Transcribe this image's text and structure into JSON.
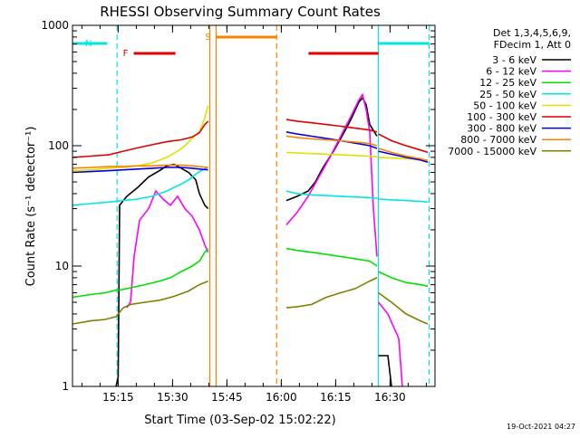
{
  "chart_data": {
    "type": "line",
    "title": "RHESSI Observing Summary Count Rates",
    "xlabel": "Start Time (03-Sep-02 15:02:22)",
    "ylabel": "Count Rate (s⁻¹ detector⁻¹)",
    "yscale": "log",
    "ylim": [
      1,
      1000
    ],
    "xlim_minutes": [
      0,
      100
    ],
    "x_tick_labels": [
      "15:15",
      "15:30",
      "15:45",
      "16:00",
      "16:15",
      "16:30"
    ],
    "x_tick_minutes": [
      12.6,
      27.6,
      42.6,
      57.6,
      72.6,
      87.6
    ],
    "y_tick_labels": [
      "1",
      "10",
      "100",
      "1000"
    ],
    "y_tick_values": [
      1,
      10,
      100,
      1000
    ],
    "legend_position": "right",
    "legend_header": [
      "Det 1,3,4,5,6,9,",
      "FDecim 1, Att 0"
    ],
    "footer": "19-Oct-2021 04:27",
    "flags": [
      {
        "label": "N",
        "color": "#00e5e5",
        "segments": [
          [
            0,
            9.6
          ],
          [
            84.4,
            98.4
          ]
        ]
      },
      {
        "label": "F",
        "color": "#e00000",
        "segments": [
          [
            16.9,
            28.4
          ],
          [
            65.1,
            84.4
          ]
        ]
      },
      {
        "label": "S",
        "color": "#ff7f00",
        "segments": [
          [
            39.6,
            56.3
          ]
        ]
      }
    ],
    "vlines": [
      {
        "minute": 12.3,
        "color": "#00e5e5",
        "dash": true
      },
      {
        "minute": 39.6,
        "color": "#ff7f00",
        "dash": false
      },
      {
        "minute": 37.9,
        "color": "#ff7f00",
        "dash": false
      },
      {
        "minute": 56.3,
        "color": "#ff7f00",
        "dash": true
      },
      {
        "minute": 84.4,
        "color": "#00e5e5",
        "dash": false
      },
      {
        "minute": 98.4,
        "color": "#00e5e5",
        "dash": true
      }
    ],
    "series": [
      {
        "name": "3 - 6 keV",
        "color": "#000000",
        "segments": [
          [
            [
              12.0,
              1.0
            ],
            [
              12.6,
              1.2
            ],
            [
              13.0,
              32
            ],
            [
              15,
              38
            ],
            [
              18,
              45
            ],
            [
              21,
              55
            ],
            [
              24,
              62
            ],
            [
              26,
              68
            ],
            [
              28,
              70
            ],
            [
              30,
              65
            ],
            [
              32,
              60
            ],
            [
              34,
              52
            ],
            [
              35,
              40
            ],
            [
              36.5,
              32
            ],
            [
              37.4,
              30
            ]
          ],
          [
            [
              59,
              35
            ],
            [
              62,
              38
            ],
            [
              65,
              42
            ],
            [
              67,
              50
            ],
            [
              69,
              65
            ],
            [
              72,
              90
            ],
            [
              75,
              130
            ],
            [
              77,
              170
            ],
            [
              79,
              230
            ],
            [
              80,
              250
            ],
            [
              81,
              220
            ],
            [
              82,
              150
            ],
            [
              84,
              120
            ]
          ],
          [
            [
              84.4,
              1.8
            ],
            [
              87,
              1.8
            ],
            [
              88,
              1.0
            ]
          ]
        ]
      },
      {
        "name": "6 - 12 keV",
        "color": "#ff00ff",
        "segments": [
          [
            [
              15,
              4.5
            ],
            [
              16,
              5
            ],
            [
              17,
              12
            ],
            [
              18.5,
              24
            ],
            [
              21,
              30
            ],
            [
              23,
              42
            ],
            [
              25,
              36
            ],
            [
              27,
              32
            ],
            [
              29,
              38
            ],
            [
              31,
              30
            ],
            [
              33,
              26
            ],
            [
              35,
              20
            ],
            [
              36.5,
              15
            ],
            [
              37.4,
              13
            ]
          ],
          [
            [
              59,
              22
            ],
            [
              62,
              28
            ],
            [
              65,
              38
            ],
            [
              68,
              55
            ],
            [
              71,
              80
            ],
            [
              74,
              120
            ],
            [
              77,
              180
            ],
            [
              79,
              240
            ],
            [
              80,
              265
            ],
            [
              81,
              200
            ],
            [
              82,
              130
            ],
            [
              83,
              30
            ],
            [
              84,
              12
            ]
          ],
          [
            [
              84.4,
              5
            ],
            [
              87,
              4
            ],
            [
              90,
              2.5
            ],
            [
              91,
              1
            ]
          ]
        ]
      },
      {
        "name": "12 - 25 keV",
        "color": "#00e000",
        "segments": [
          [
            [
              0,
              5.5
            ],
            [
              5,
              5.8
            ],
            [
              9,
              6
            ],
            [
              12,
              6.3
            ],
            [
              14,
              6.4
            ],
            [
              16,
              6.6
            ],
            [
              20,
              7
            ],
            [
              24,
              7.5
            ],
            [
              27,
              8
            ],
            [
              30,
              9
            ],
            [
              33,
              10
            ],
            [
              35,
              11
            ],
            [
              36.5,
              13
            ],
            [
              37.4,
              14
            ]
          ],
          [
            [
              59,
              14
            ],
            [
              62,
              13.5
            ],
            [
              66,
              13
            ],
            [
              70,
              12.5
            ],
            [
              74,
              12
            ],
            [
              78,
              11.5
            ],
            [
              82,
              11
            ],
            [
              84,
              10
            ]
          ],
          [
            [
              84.4,
              9
            ],
            [
              88,
              8
            ],
            [
              92,
              7.3
            ],
            [
              96,
              7
            ],
            [
              98,
              6.8
            ]
          ]
        ]
      },
      {
        "name": "25 - 50 keV",
        "color": "#00e5e5",
        "segments": [
          [
            [
              0,
              32
            ],
            [
              5,
              33
            ],
            [
              10,
              34
            ],
            [
              14,
              35
            ],
            [
              18,
              36
            ],
            [
              22,
              38
            ],
            [
              26,
              42
            ],
            [
              28,
              45
            ],
            [
              30,
              48
            ],
            [
              32,
              52
            ],
            [
              34,
              58
            ],
            [
              35.5,
              62
            ],
            [
              37.4,
              66
            ]
          ],
          [
            [
              59,
              42
            ],
            [
              62,
              40
            ],
            [
              66,
              39
            ],
            [
              70,
              38.5
            ],
            [
              74,
              38
            ],
            [
              78,
              37.5
            ],
            [
              82,
              37
            ],
            [
              84,
              36.5
            ]
          ],
          [
            [
              84.4,
              36
            ],
            [
              88,
              35.5
            ],
            [
              92,
              35
            ],
            [
              96,
              34.5
            ],
            [
              98,
              34
            ]
          ]
        ]
      },
      {
        "name": "50 - 100 keV",
        "color": "#e0e000",
        "segments": [
          [
            [
              0,
              62
            ],
            [
              5,
              63
            ],
            [
              10,
              65
            ],
            [
              14,
              66
            ],
            [
              18,
              68
            ],
            [
              22,
              72
            ],
            [
              26,
              80
            ],
            [
              29,
              90
            ],
            [
              31,
              100
            ],
            [
              33,
              115
            ],
            [
              35,
              130
            ],
            [
              36.5,
              170
            ],
            [
              37.4,
              215
            ]
          ],
          [
            [
              59,
              88
            ],
            [
              62,
              87
            ],
            [
              66,
              86
            ],
            [
              70,
              85
            ],
            [
              74,
              84
            ],
            [
              78,
              83
            ],
            [
              82,
              82
            ],
            [
              84,
              81
            ]
          ],
          [
            [
              84.4,
              80
            ],
            [
              88,
              79
            ],
            [
              92,
              78
            ],
            [
              96,
              77
            ],
            [
              98,
              76
            ]
          ]
        ]
      },
      {
        "name": "100 - 300 keV",
        "color": "#e00000",
        "segments": [
          [
            [
              0,
              80
            ],
            [
              5,
              82
            ],
            [
              10,
              84
            ],
            [
              14,
              90
            ],
            [
              18,
              96
            ],
            [
              22,
              102
            ],
            [
              26,
              108
            ],
            [
              30,
              112
            ],
            [
              33,
              118
            ],
            [
              35,
              128
            ],
            [
              36.5,
              150
            ],
            [
              37.4,
              160
            ]
          ],
          [
            [
              59,
              165
            ],
            [
              62,
              160
            ],
            [
              66,
              155
            ],
            [
              70,
              150
            ],
            [
              74,
              145
            ],
            [
              78,
              140
            ],
            [
              82,
              135
            ],
            [
              84,
              130
            ]
          ],
          [
            [
              84.4,
              125
            ],
            [
              88,
              110
            ],
            [
              92,
              100
            ],
            [
              96,
              92
            ],
            [
              98,
              88
            ]
          ]
        ]
      },
      {
        "name": "300 - 800 keV",
        "color": "#0000e0",
        "segments": [
          [
            [
              0,
              60
            ],
            [
              5,
              61
            ],
            [
              10,
              62
            ],
            [
              14,
              63
            ],
            [
              18,
              64
            ],
            [
              22,
              65
            ],
            [
              26,
              66
            ],
            [
              30,
              66
            ],
            [
              33,
              65
            ],
            [
              35,
              64
            ],
            [
              37.4,
              63
            ]
          ],
          [
            [
              59,
              130
            ],
            [
              62,
              125
            ],
            [
              66,
              120
            ],
            [
              70,
              115
            ],
            [
              74,
              110
            ],
            [
              78,
              105
            ],
            [
              82,
              100
            ],
            [
              84,
              95
            ]
          ],
          [
            [
              84.4,
              90
            ],
            [
              88,
              85
            ],
            [
              92,
              80
            ],
            [
              96,
              76
            ],
            [
              98,
              73
            ]
          ]
        ]
      },
      {
        "name": "800 - 7000 keV",
        "color": "#ff7f00",
        "segments": [
          [
            [
              0,
              65
            ],
            [
              5,
              66
            ],
            [
              10,
              67
            ],
            [
              14,
              67
            ],
            [
              18,
              68
            ],
            [
              22,
              68
            ],
            [
              26,
              69
            ],
            [
              30,
              69
            ],
            [
              33,
              68
            ],
            [
              35,
              67
            ],
            [
              37.4,
              66
            ]
          ],
          [
            [
              59,
              120
            ],
            [
              62,
              117
            ],
            [
              66,
              114
            ],
            [
              70,
              112
            ],
            [
              74,
              110
            ],
            [
              78,
              107
            ],
            [
              82,
              104
            ],
            [
              84,
              100
            ]
          ],
          [
            [
              84.4,
              95
            ],
            [
              88,
              88
            ],
            [
              92,
              82
            ],
            [
              96,
              78
            ],
            [
              98,
              75
            ]
          ]
        ]
      },
      {
        "name": "7000 - 15000 keV",
        "color": "#808000",
        "segments": [
          [
            [
              0,
              3.3
            ],
            [
              5,
              3.5
            ],
            [
              9,
              3.6
            ],
            [
              12,
              3.8
            ],
            [
              14,
              4.5
            ],
            [
              16,
              4.8
            ],
            [
              20,
              5
            ],
            [
              24,
              5.2
            ],
            [
              28,
              5.6
            ],
            [
              32,
              6.2
            ],
            [
              35,
              7
            ],
            [
              37.4,
              7.5
            ]
          ],
          [
            [
              59,
              4.5
            ],
            [
              62,
              4.6
            ],
            [
              66,
              4.8
            ],
            [
              70,
              5.5
            ],
            [
              74,
              6
            ],
            [
              78,
              6.5
            ],
            [
              82,
              7.5
            ],
            [
              84,
              8
            ]
          ],
          [
            [
              84.4,
              6
            ],
            [
              88,
              5
            ],
            [
              92,
              4
            ],
            [
              96,
              3.5
            ],
            [
              98,
              3.3
            ]
          ]
        ]
      }
    ]
  }
}
